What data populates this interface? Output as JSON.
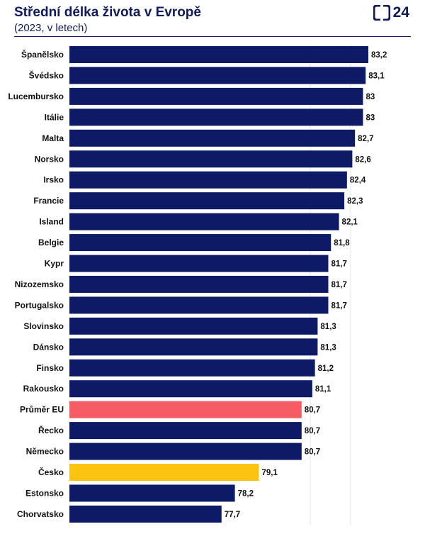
{
  "header": {
    "title": "Střední délka života v Evropě",
    "subtitle": "(2023, v letech)",
    "logo_text": "24"
  },
  "colors": {
    "bar": "#0d1a66",
    "eu_average": "#f55c63",
    "czechia": "#fcc410",
    "grid": "#e6e6e6"
  },
  "chart_data": {
    "type": "bar",
    "orientation": "horizontal",
    "categories": [
      "Španělsko",
      "Švédsko",
      "Lucembursko",
      "Itálie",
      "Malta",
      "Norsko",
      "Irsko",
      "Francie",
      "Island",
      "Belgie",
      "Kypr",
      "Nizozemsko",
      "Portugalsko",
      "Slovinsko",
      "Dánsko",
      "Finsko",
      "Rakousko",
      "Průměr EU",
      "Řecko",
      "Německo",
      "Česko",
      "Estonsko",
      "Chorvatsko"
    ],
    "values": [
      83.2,
      83.1,
      83,
      83,
      82.7,
      82.6,
      82.4,
      82.3,
      82.1,
      81.8,
      81.7,
      81.7,
      81.7,
      81.3,
      81.3,
      81.2,
      81.1,
      80.7,
      80.7,
      80.7,
      79.1,
      78.2,
      77.7
    ],
    "value_labels": [
      "83,2",
      "83,1",
      "83",
      "83",
      "82,7",
      "82,6",
      "82,4",
      "82,3",
      "82,1",
      "81,8",
      "81,7",
      "81,7",
      "81,7",
      "81,3",
      "81,3",
      "81,2",
      "81,1",
      "80,7",
      "80,7",
      "80,7",
      "79,1",
      "78,2",
      "77,7"
    ],
    "highlight": {
      "Průměr EU": "eu_average",
      "Česko": "czechia"
    },
    "xlim": [
      72,
      83.2
    ],
    "grid": true
  }
}
